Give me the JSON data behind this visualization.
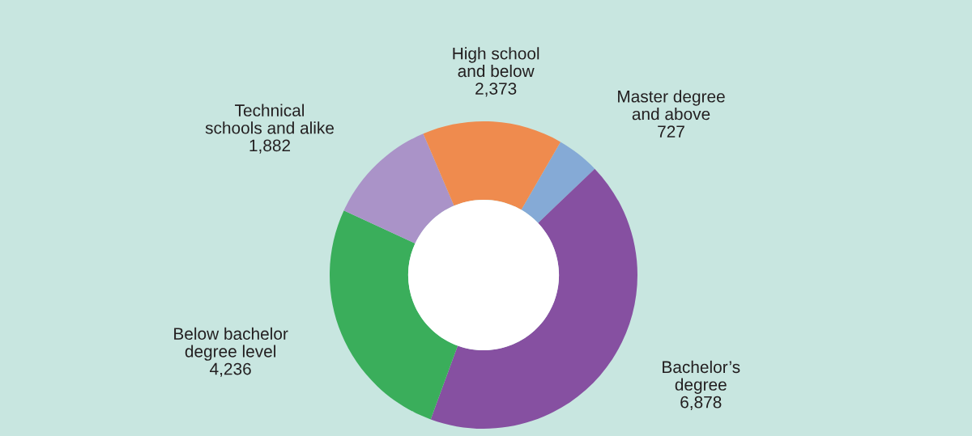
{
  "chart_data": {
    "type": "donut",
    "categories": [
      "Master degree and above",
      "Bachelor’s degree",
      "Below bachelor degree level",
      "Technical schools and alike",
      "High school and below"
    ],
    "values": [
      727,
      6878,
      4236,
      1882,
      2373
    ],
    "value_labels": [
      "727",
      "6,878",
      "4,236",
      "1,882",
      "2,373"
    ],
    "colors": [
      "#85aad6",
      "#8650a1",
      "#3aae5b",
      "#aa93c8",
      "#ef8b4e"
    ],
    "legend": false
  }
}
